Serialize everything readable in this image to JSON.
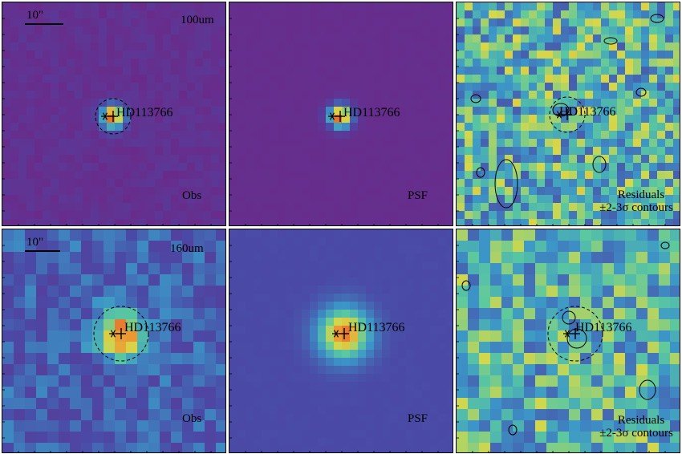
{
  "figure": {
    "source_name": "HD113766",
    "scale_label": "10\"",
    "residual_line1": "Residuals",
    "residual_line2": "±2-3σ contours",
    "rows": [
      {
        "band": "100um",
        "labels": [
          "Obs",
          "PSF",
          ""
        ]
      },
      {
        "band": "160um",
        "labels": [
          "Obs",
          "PSF",
          ""
        ]
      }
    ]
  },
  "colors": {
    "bg100": "#6a2a8a",
    "bg160": "#4a4aa6",
    "res_low": "#3a6ab8",
    "res_high": "#d8d848",
    "peak": "#d8402a"
  }
}
